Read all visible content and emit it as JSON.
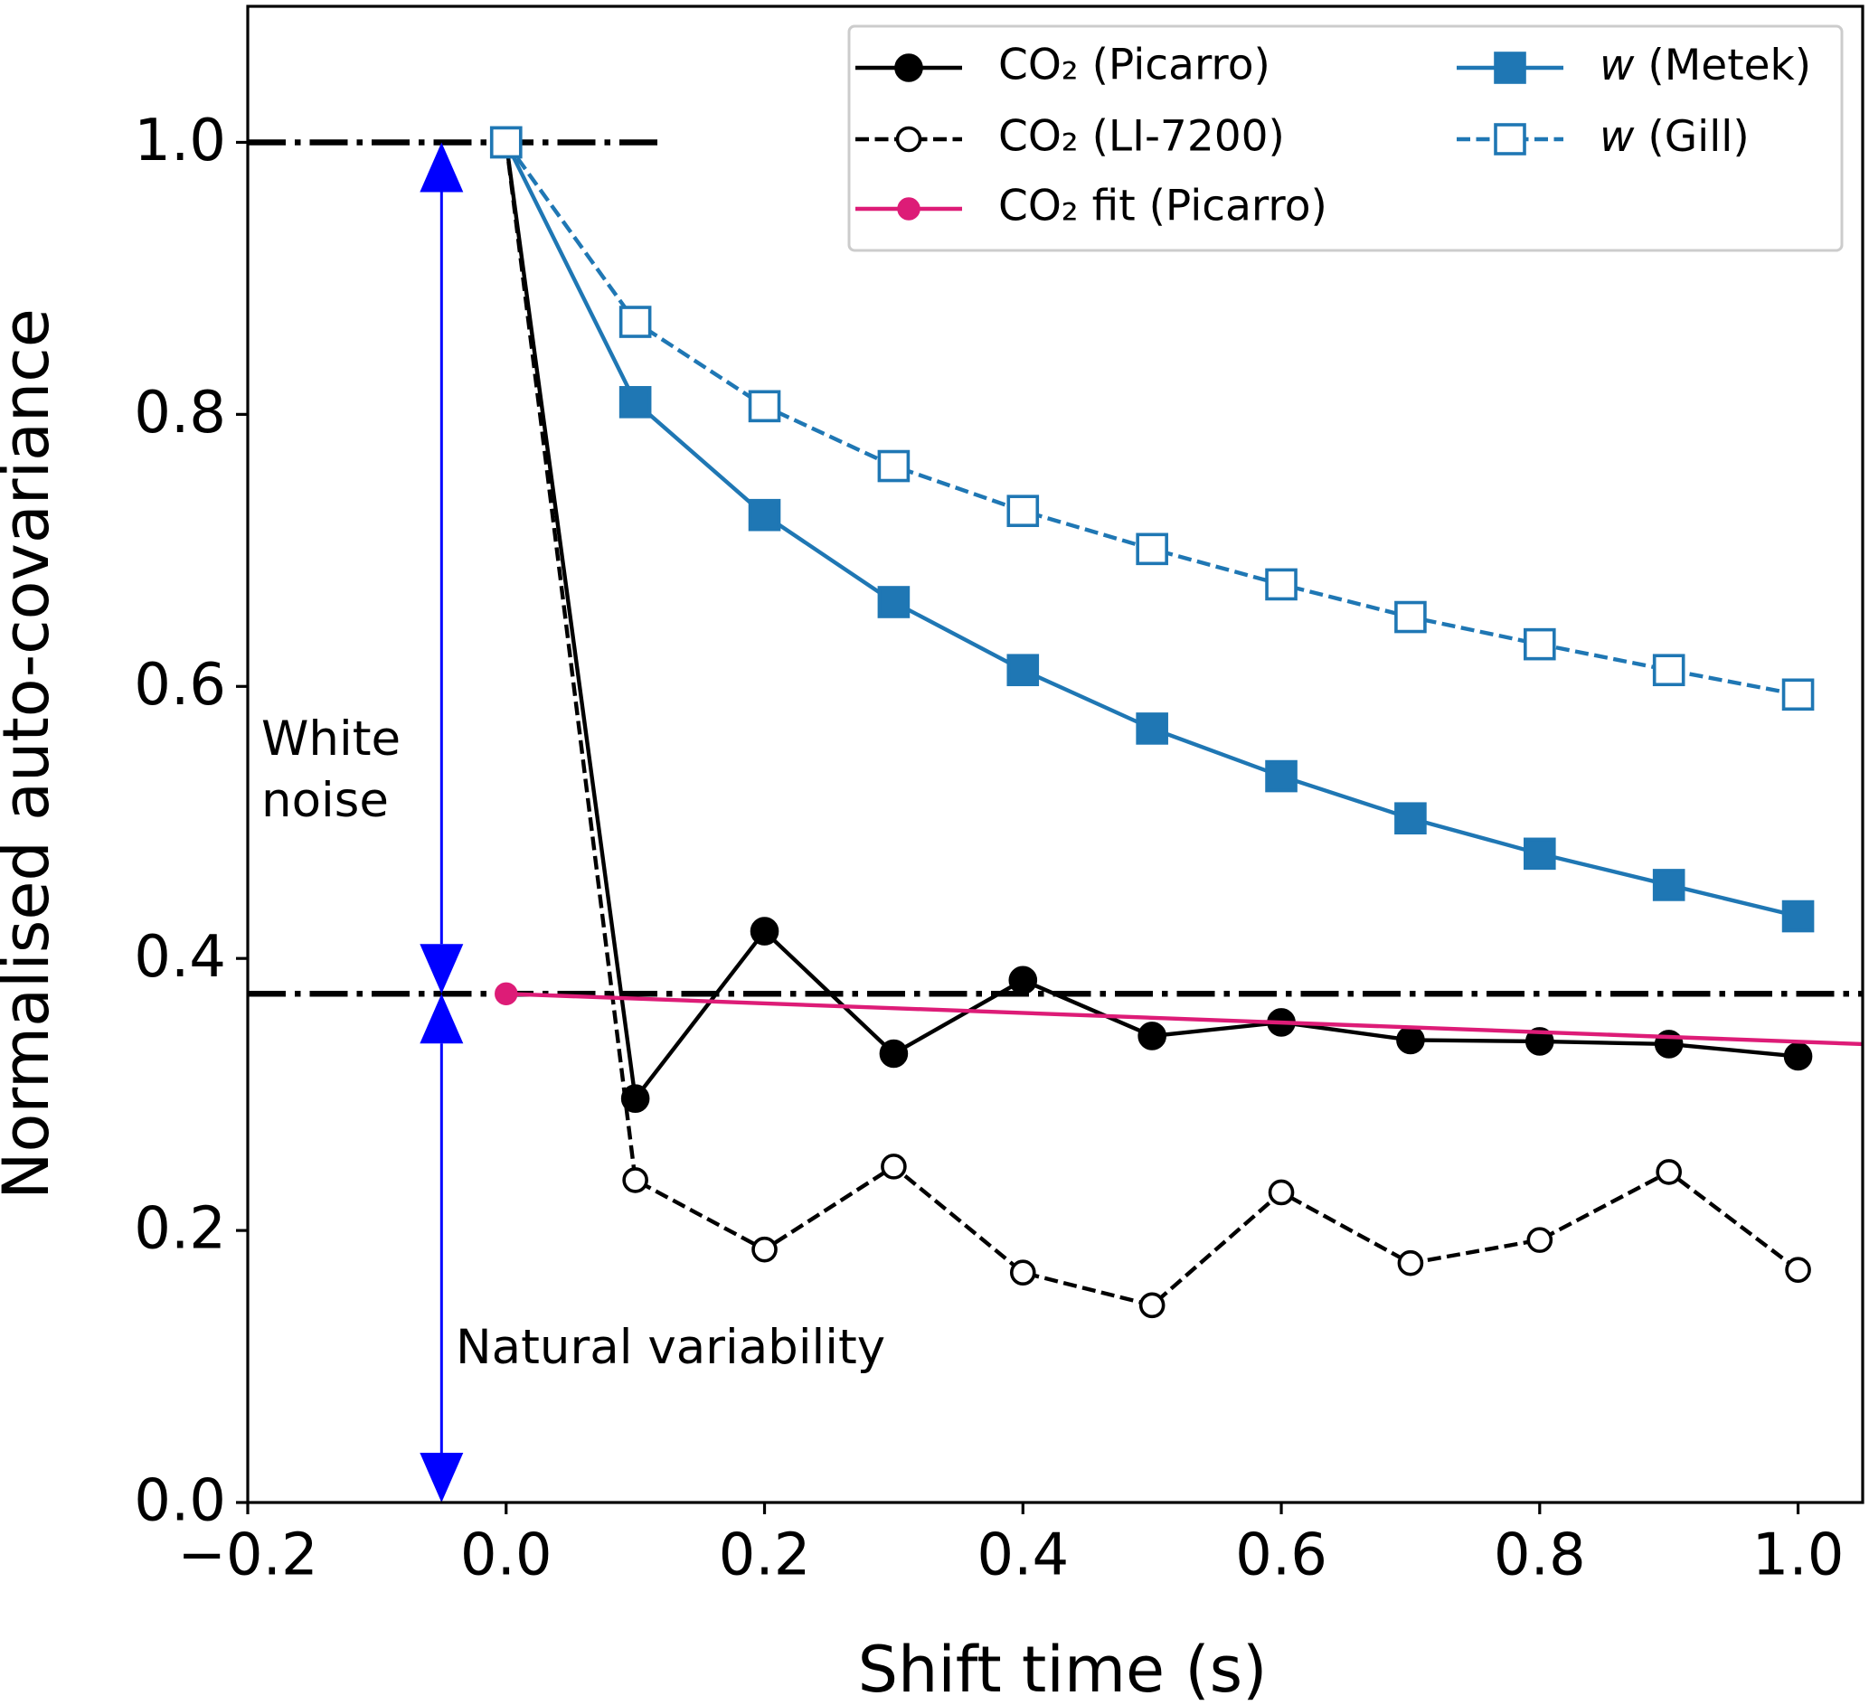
{
  "chart_data": {
    "type": "line",
    "xlabel": "Shift time (s)",
    "ylabel": "Normalised auto-covariance",
    "xlim": [
      -0.2,
      1.05
    ],
    "ylim": [
      0,
      1.1
    ],
    "xticks": [
      {
        "value": -0.2,
        "label": "−0.2"
      },
      {
        "value": 0,
        "label": "0.0"
      },
      0.2,
      0.4,
      0.6,
      0.8,
      {
        "value": 1.0,
        "label": "1.0"
      }
    ],
    "yticks": [
      {
        "value": 0,
        "label": "0.0"
      },
      0.2,
      0.4,
      0.6,
      0.8,
      {
        "value": 1.0,
        "label": "1.0"
      }
    ],
    "legend": "upper right",
    "legend_columns": 2,
    "series": [
      {
        "name": "CO₂ (Picarro)",
        "color": "#000000",
        "linestyle": "solid",
        "marker": "circle",
        "filled": true,
        "x": [
          0,
          0.1,
          0.2,
          0.3,
          0.4,
          0.5,
          0.6,
          0.7,
          0.8,
          0.9,
          1.0
        ],
        "values": [
          1.0,
          0.297,
          0.42,
          0.33,
          0.384,
          0.343,
          0.353,
          0.34,
          0.339,
          0.337,
          0.328
        ]
      },
      {
        "name": "CO₂ (LI-7200)",
        "color": "#000000",
        "linestyle": "dashed",
        "marker": "circle",
        "filled": false,
        "x": [
          0,
          0.1,
          0.2,
          0.3,
          0.4,
          0.5,
          0.6,
          0.7,
          0.8,
          0.9,
          1.0
        ],
        "values": [
          1.0,
          0.237,
          0.186,
          0.247,
          0.169,
          0.145,
          0.228,
          0.176,
          0.193,
          0.243,
          0.171
        ]
      },
      {
        "name": "CO₂ fit (Picarro)",
        "color": "#dd1c77",
        "linestyle": "solid",
        "marker": "circle",
        "filled": true,
        "markevery": 1,
        "x": [
          0,
          1.05
        ],
        "values": [
          0.374,
          0.337
        ]
      },
      {
        "name": "w (Metek)",
        "color": "#1f77b4",
        "linestyle": "solid",
        "marker": "square",
        "filled": true,
        "x": [
          0,
          0.1,
          0.2,
          0.3,
          0.4,
          0.5,
          0.6,
          0.7,
          0.8,
          0.9,
          1.0
        ],
        "values": [
          1.0,
          0.809,
          0.726,
          0.662,
          0.612,
          0.569,
          0.534,
          0.503,
          0.477,
          0.454,
          0.431
        ]
      },
      {
        "name": "w (Gill)",
        "color": "#1f77b4",
        "linestyle": "dashed",
        "marker": "square",
        "filled": false,
        "x": [
          0,
          0.1,
          0.2,
          0.3,
          0.4,
          0.5,
          0.6,
          0.7,
          0.8,
          0.9,
          1.0
        ],
        "values": [
          1.0,
          0.868,
          0.806,
          0.762,
          0.729,
          0.701,
          0.675,
          0.651,
          0.631,
          0.612,
          0.594
        ]
      }
    ],
    "reference_lines": [
      {
        "y": 1.0,
        "x": [
          -0.2,
          0.12
        ],
        "color": "#000000"
      },
      {
        "y": 0.374,
        "color": "#000000"
      }
    ],
    "arrows": [
      {
        "x": -0.05,
        "from": 1.0,
        "to": 0.374,
        "color": "#0000ff"
      },
      {
        "x": -0.05,
        "from": 0.374,
        "to": 0,
        "color": "#0000ff"
      }
    ],
    "annotations": [
      "White noise",
      "Natural variability"
    ]
  }
}
